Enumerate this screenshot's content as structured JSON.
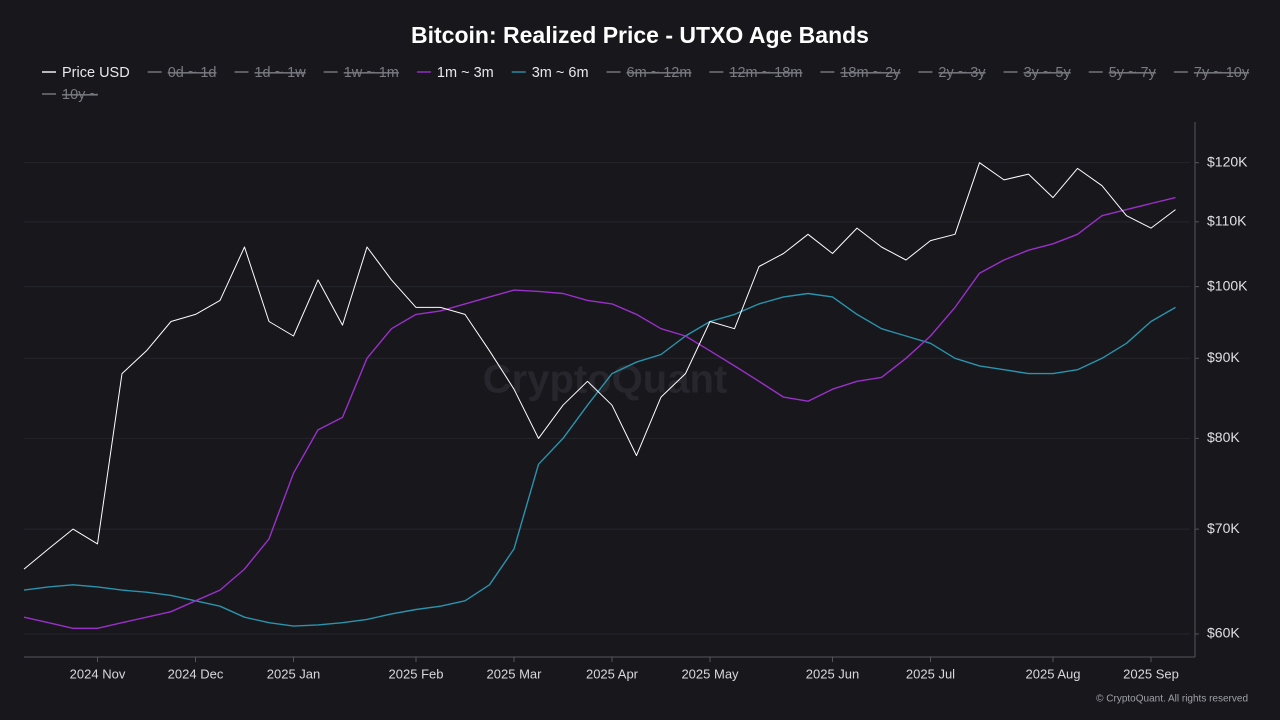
{
  "chart_data": {
    "type": "line",
    "title": "Bitcoin: Realized Price - UTXO Age Bands",
    "watermark": "CryptoQuant",
    "footer": "© CryptoQuant. All rights reserved",
    "categories": [
      null,
      null,
      null,
      "2024 Nov",
      null,
      null,
      null,
      "2024 Dec",
      null,
      null,
      null,
      "2025 Jan",
      null,
      null,
      null,
      null,
      "2025 Feb",
      null,
      null,
      null,
      "2025 Mar",
      null,
      null,
      null,
      "2025 Apr",
      null,
      null,
      null,
      "2025 May",
      null,
      null,
      null,
      null,
      "2025 Jun",
      null,
      null,
      null,
      "2025 Jul",
      null,
      null,
      null,
      null,
      "2025 Aug",
      null,
      null,
      null,
      "2025 Sep",
      null
    ],
    "series": [
      {
        "name": "Price USD",
        "color": "#ffffff",
        "values": [
          66000,
          68000,
          70000,
          68500,
          88000,
          91000,
          95000,
          96000,
          98000,
          106000,
          95000,
          93000,
          101000,
          94500,
          106000,
          101000,
          97000,
          97000,
          96000,
          91000,
          86000,
          80000,
          84000,
          87000,
          84000,
          78000,
          85000,
          88000,
          95000,
          94000,
          103000,
          105000,
          108000,
          105000,
          109000,
          106000,
          104000,
          107000,
          108000,
          120000,
          117000,
          118000,
          114000,
          119000,
          116000,
          111000,
          109000,
          112000
        ]
      },
      {
        "name": "0d ~ 1d",
        "hidden": true
      },
      {
        "name": "1d ~ 1w",
        "hidden": true
      },
      {
        "name": "1w ~ 1m",
        "hidden": true
      },
      {
        "name": "1m ~ 3m",
        "color": "#9b2fc9",
        "values": [
          61500,
          61000,
          60500,
          60500,
          61000,
          61500,
          62000,
          63000,
          64000,
          66000,
          69000,
          76000,
          81000,
          82500,
          90000,
          94000,
          96000,
          96500,
          97500,
          98500,
          99500,
          99300,
          99000,
          98000,
          97500,
          96000,
          94000,
          93000,
          91000,
          89000,
          87000,
          85000,
          84500,
          86000,
          87000,
          87500,
          90000,
          93000,
          97000,
          102000,
          104000,
          105500,
          106500,
          108000,
          111000,
          112000,
          113000,
          114000
        ]
      },
      {
        "name": "3m ~ 6m",
        "color": "#2a93ad",
        "values": [
          64000,
          64300,
          64500,
          64300,
          64000,
          63800,
          63500,
          63000,
          62500,
          61500,
          61000,
          60700,
          60800,
          61000,
          61300,
          61800,
          62200,
          62500,
          63000,
          64500,
          68000,
          77000,
          80000,
          84000,
          88000,
          89500,
          90500,
          93000,
          95000,
          96000,
          97500,
          98500,
          99000,
          98500,
          96000,
          94000,
          93000,
          92000,
          90000,
          89000,
          88500,
          88000,
          88000,
          88500,
          90000,
          92000,
          95000,
          97000
        ]
      },
      {
        "name": "6m ~ 12m",
        "hidden": true
      },
      {
        "name": "12m ~ 18m",
        "hidden": true
      },
      {
        "name": "18m ~ 2y",
        "hidden": true
      },
      {
        "name": "2y ~ 3y",
        "hidden": true
      },
      {
        "name": "3y ~ 5y",
        "hidden": true
      },
      {
        "name": "5y ~ 7y",
        "hidden": true
      },
      {
        "name": "7y ~ 10y",
        "hidden": true
      },
      {
        "name": "10y ~",
        "hidden": true
      }
    ],
    "log_scale": true,
    "grid": true,
    "ylim": [
      58000,
      127400
    ],
    "yticks": [
      {
        "value": 60000,
        "label": "$60K"
      },
      {
        "value": 70000,
        "label": "$70K"
      },
      {
        "value": 80000,
        "label": "$80K"
      },
      {
        "value": 90000,
        "label": "$90K"
      },
      {
        "value": 100000,
        "label": "$100K"
      },
      {
        "value": 110000,
        "label": "$110K"
      },
      {
        "value": 120000,
        "label": "$120K"
      }
    ]
  }
}
